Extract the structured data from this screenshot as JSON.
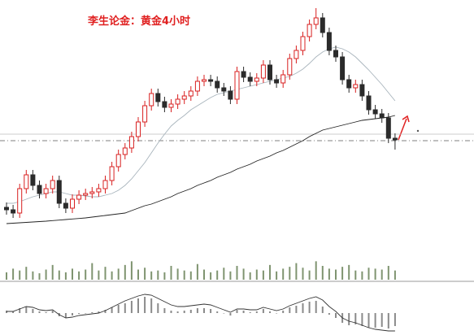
{
  "chart_data": {
    "type": "candlestick",
    "title": "李生论金：黄金4小时",
    "up_color": "#d82020",
    "down_color": "#2b2b2b",
    "ylim": [
      0,
      300
    ],
    "open": [
      45,
      42,
      38,
      68,
      85,
      72,
      62,
      68,
      78,
      50,
      44,
      55,
      60,
      62,
      64,
      68,
      78,
      95,
      110,
      118,
      132,
      150,
      170,
      185,
      175,
      168,
      172,
      178,
      182,
      188,
      200,
      202,
      200,
      192,
      188,
      178,
      212,
      205,
      200,
      204,
      220,
      202,
      198,
      208,
      228,
      238,
      255,
      270,
      278,
      260,
      238,
      230,
      202,
      192,
      196,
      182,
      165,
      160,
      155,
      130
    ],
    "high": [
      51,
      48,
      74,
      91,
      91,
      78,
      74,
      84,
      84,
      56,
      61,
      66,
      68,
      70,
      74,
      84,
      101,
      116,
      124,
      138,
      156,
      176,
      191,
      191,
      181,
      178,
      184,
      188,
      194,
      206,
      208,
      208,
      206,
      198,
      194,
      218,
      218,
      211,
      210,
      226,
      226,
      208,
      214,
      234,
      244,
      261,
      276,
      290,
      284,
      266,
      244,
      236,
      208,
      202,
      202,
      188,
      171,
      166,
      161,
      136
    ],
    "low": [
      36,
      32,
      32,
      62,
      66,
      56,
      56,
      62,
      44,
      38,
      38,
      49,
      54,
      56,
      58,
      62,
      72,
      89,
      104,
      112,
      126,
      144,
      164,
      169,
      162,
      162,
      166,
      172,
      176,
      182,
      194,
      194,
      186,
      182,
      172,
      172,
      199,
      194,
      194,
      198,
      196,
      192,
      192,
      202,
      222,
      232,
      249,
      264,
      254,
      232,
      224,
      196,
      186,
      186,
      176,
      159,
      154,
      149,
      124,
      116
    ],
    "close": [
      42,
      38,
      68,
      85,
      72,
      62,
      68,
      78,
      50,
      44,
      55,
      60,
      62,
      64,
      68,
      78,
      95,
      110,
      118,
      132,
      150,
      170,
      185,
      175,
      168,
      172,
      178,
      182,
      188,
      200,
      202,
      200,
      192,
      188,
      178,
      212,
      205,
      200,
      204,
      220,
      202,
      198,
      208,
      228,
      238,
      255,
      270,
      278,
      260,
      238,
      230,
      202,
      192,
      196,
      182,
      165,
      160,
      155,
      130,
      128
    ],
    "moving_averages": [
      {
        "color": "#222222",
        "values": [
          25,
          25.5,
          26,
          26.5,
          27,
          27.5,
          28,
          28.7,
          29.3,
          30,
          30.7,
          31.3,
          32,
          33,
          34,
          35,
          36,
          37,
          38,
          41,
          44,
          47,
          49,
          52,
          55,
          58,
          62,
          65,
          68,
          72,
          75,
          78,
          82,
          85,
          88,
          92,
          95,
          98,
          102,
          105,
          108,
          112,
          115,
          119,
          123,
          127,
          132,
          136,
          140,
          142,
          144,
          146,
          148,
          150,
          152,
          153,
          154,
          155,
          156,
          158
        ]
      },
      {
        "color": "#a8b4bc",
        "values": [
          50,
          50,
          52,
          55,
          58,
          60,
          62,
          64,
          64,
          62,
          60,
          60,
          59,
          58,
          58,
          60,
          62,
          66,
          72,
          80,
          90,
          100,
          112,
          124,
          135,
          145,
          152,
          158,
          165,
          170,
          175,
          180,
          184,
          186,
          188,
          190,
          192,
          194,
          196,
          198,
          200,
          202,
          204,
          206,
          210,
          215,
          222,
          230,
          236,
          240,
          242,
          240,
          236,
          230,
          222,
          214,
          205,
          196,
          186,
          176
        ]
      }
    ],
    "reference_lines": [
      {
        "value": 135,
        "color": "#bbbbbb",
        "dash": false
      },
      {
        "value": 127,
        "color": "#555555",
        "dash": true
      }
    ],
    "volume": {
      "color": "#7f9470",
      "ylim": [
        0,
        30
      ],
      "values": [
        8,
        12,
        10,
        14,
        9,
        7,
        11,
        16,
        10,
        8,
        12,
        9,
        11,
        18,
        10,
        14,
        9,
        12,
        16,
        20,
        11,
        13,
        9,
        10,
        8,
        15,
        12,
        10,
        9,
        17,
        11,
        8,
        10,
        13,
        9,
        15,
        12,
        8,
        11,
        10,
        16,
        9,
        12,
        14,
        18,
        13,
        10,
        20,
        15,
        12,
        11,
        14,
        16,
        10,
        9,
        13,
        12,
        11,
        15,
        10
      ]
    },
    "macd": {
      "color": "#8a8a8a",
      "line_color": "#333333",
      "ylim": [
        -25,
        25
      ],
      "histogram": [
        3,
        2,
        6,
        8,
        5,
        2,
        1,
        3,
        -4,
        -6,
        -3,
        -1,
        0,
        1,
        2,
        4,
        7,
        10,
        12,
        15,
        18,
        20,
        18,
        12,
        6,
        3,
        2,
        3,
        4,
        6,
        6,
        5,
        2,
        0,
        -3,
        4,
        3,
        1,
        2,
        5,
        2,
        0,
        3,
        7,
        9,
        12,
        14,
        15,
        8,
        -2,
        -6,
        -12,
        -15,
        -14,
        -16,
        -18,
        -18,
        -17,
        -19,
        -16
      ],
      "dif": [
        2,
        2,
        5,
        8,
        7,
        4,
        3,
        4,
        -2,
        -6,
        -5,
        -3,
        -2,
        -1,
        0,
        3,
        7,
        11,
        15,
        18,
        21,
        23,
        22,
        18,
        14,
        10,
        8,
        8,
        9,
        10,
        11,
        10,
        7,
        4,
        1,
        5,
        5,
        4,
        4,
        7,
        5,
        3,
        5,
        9,
        12,
        15,
        18,
        20,
        16,
        8,
        2,
        -6,
        -10,
        -12,
        -15,
        -18,
        -20,
        -21,
        -22,
        -22
      ]
    }
  }
}
